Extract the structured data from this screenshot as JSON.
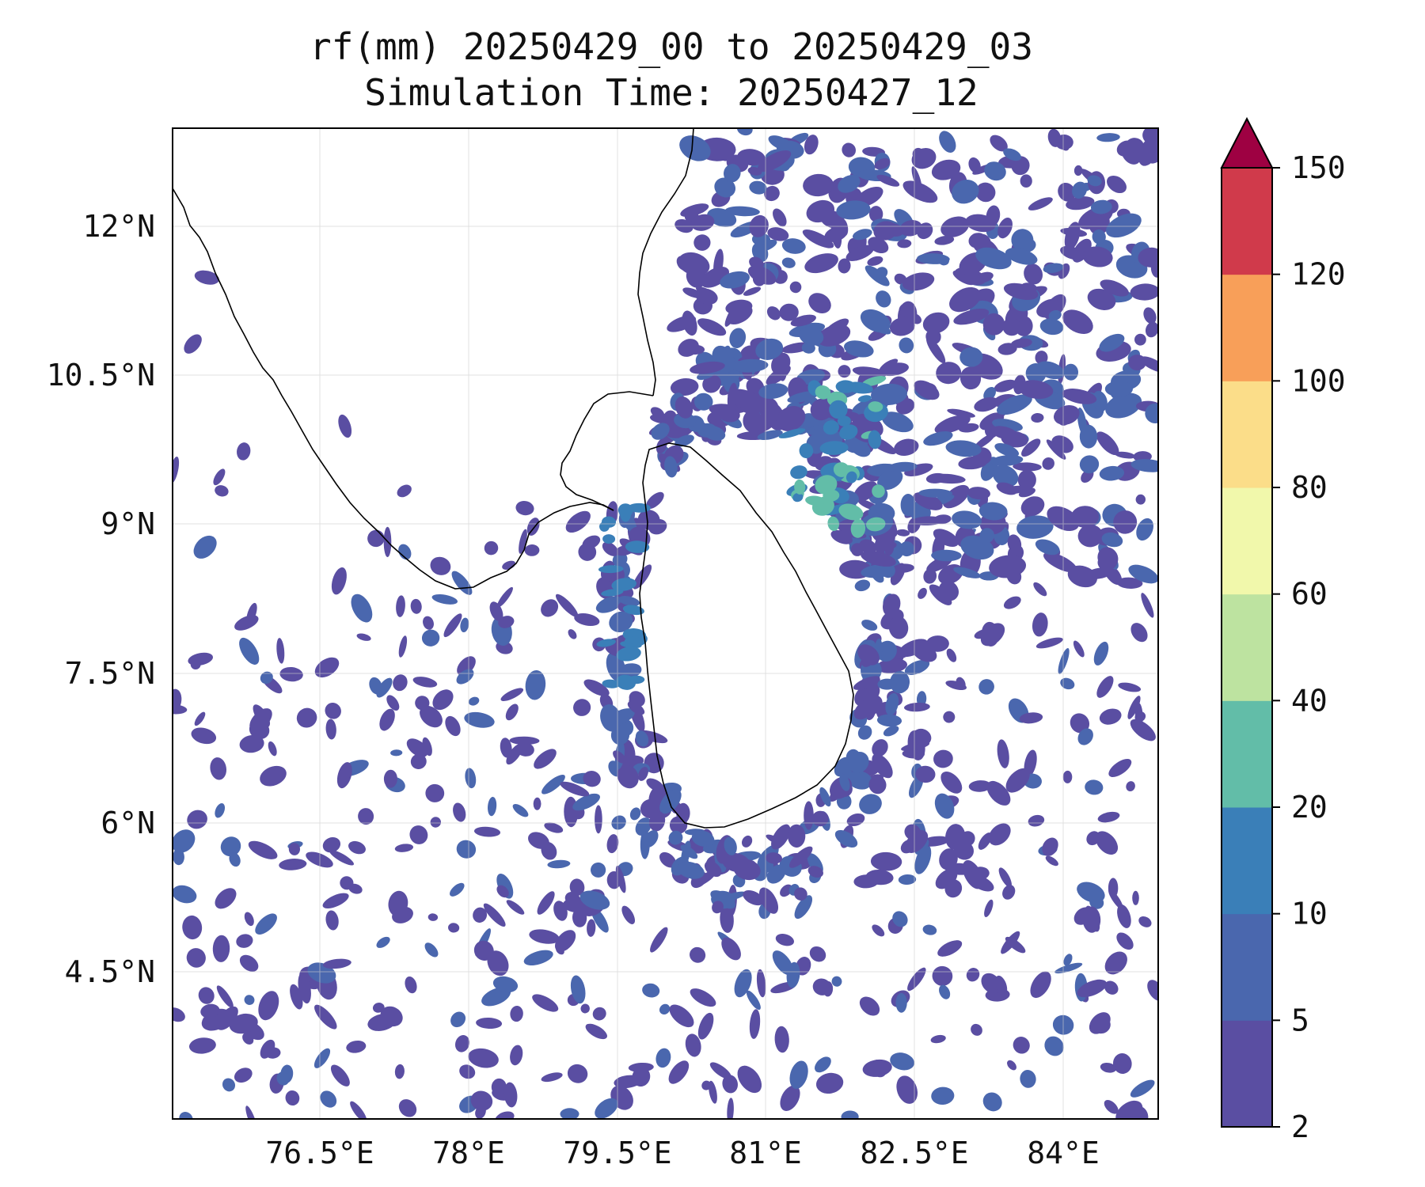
{
  "title": {
    "line1": "rf(mm) 20250429_00 to 20250429_03",
    "line2": "Simulation Time: 20250427_12"
  },
  "map": {
    "lon_labels": [
      "76.5°E",
      "78°E",
      "79.5°E",
      "81°E",
      "82.5°E",
      "84°E"
    ],
    "lat_labels": [
      "12°N",
      "10.5°N",
      "9°N",
      "7.5°N",
      "6°N",
      "4.5°N"
    ],
    "gridlines": true
  },
  "colorbar": {
    "levels": [
      "2",
      "5",
      "10",
      "20",
      "40",
      "60",
      "80",
      "100",
      "120",
      "150"
    ],
    "colors": [
      "#5a4ea2",
      "#4a67ae",
      "#3a7fb8",
      "#62bda8",
      "#bde3a0",
      "#f1f8ab",
      "#fbdd89",
      "#f89f59",
      "#d03a4b"
    ],
    "extend_color": "#9e0142",
    "extend": "max"
  }
}
